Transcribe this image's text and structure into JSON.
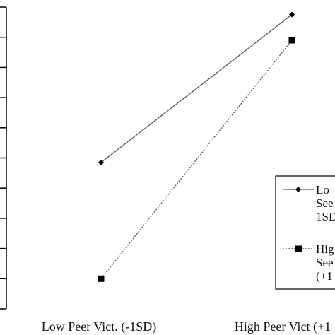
{
  "chart_data": {
    "type": "line",
    "categories": [
      "Low Peer Vict. (-1SD)",
      "High Peer Vict (+1"
    ],
    "ylim": [
      0,
      10
    ],
    "yticks": [
      0,
      1,
      2,
      3,
      4,
      5,
      6,
      7,
      8,
      9,
      10
    ],
    "grid": false,
    "legend_position": "right",
    "series": [
      {
        "legend_lines": [
          "Lo",
          "See",
          "1SD"
        ],
        "values": [
          4.85,
          9.75
        ],
        "marker": "diamond",
        "line_style": "solid",
        "color": "#555555"
      },
      {
        "legend_lines": [
          "Hig",
          "See",
          "(+1"
        ],
        "values": [
          1.0,
          8.9
        ],
        "marker": "square",
        "line_style": "dotted",
        "color": "#555555"
      }
    ]
  }
}
